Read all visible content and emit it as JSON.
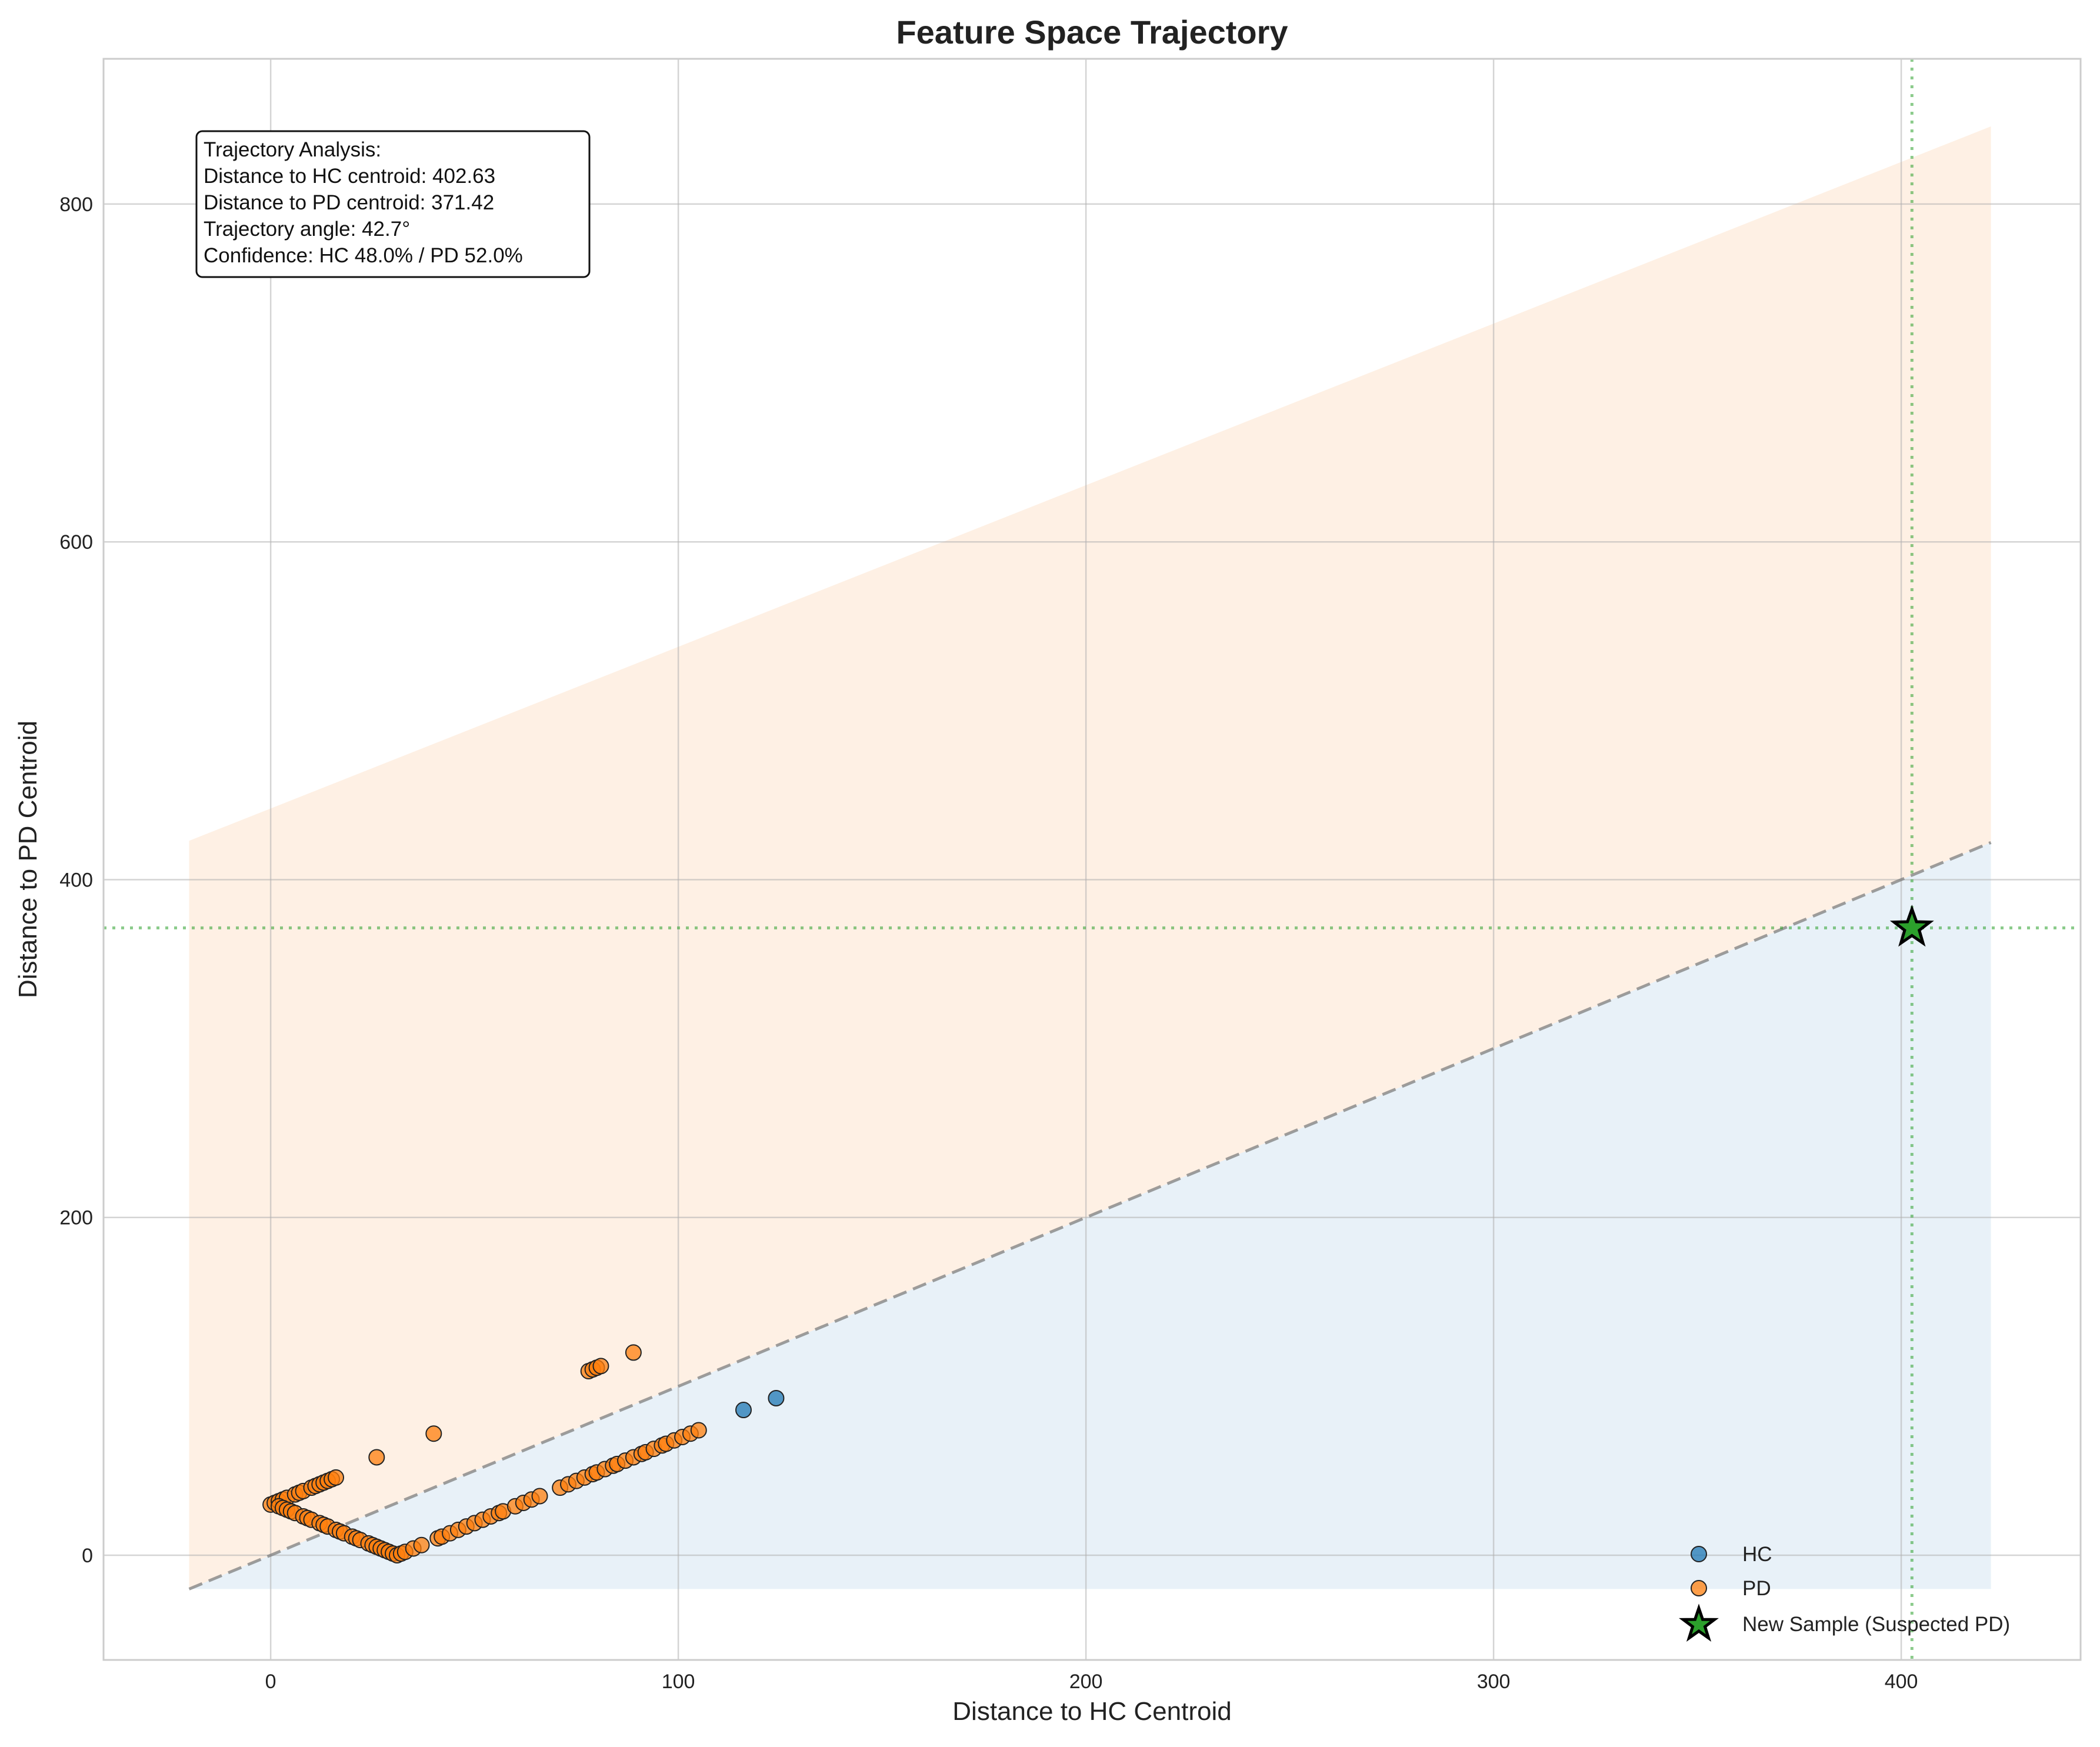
{
  "chart_data": {
    "type": "scatter",
    "title": "Feature Space Trajectory",
    "xlabel": "Distance to HC Centroid",
    "ylabel": "Distance to PD Centroid",
    "xlim": [
      -41,
      444
    ],
    "ylim": [
      -62,
      886
    ],
    "xticks": [
      0,
      100,
      200,
      300,
      400
    ],
    "yticks": [
      0,
      200,
      400,
      600,
      800
    ],
    "grid": true,
    "legend_position": "lower-right",
    "colors": {
      "hc": "#1f77b4",
      "pd": "#ff7f0e",
      "sample": "#2ca02c",
      "diagonal": "#7f7f7f",
      "hc_region": "#dce9f5",
      "pd_region": "#fde6d2"
    },
    "regions": [
      {
        "name": "PD region",
        "x": [
          -20,
          422
        ],
        "lower": [
          -20,
          422
        ],
        "upper": [
          423,
          846
        ]
      },
      {
        "name": "HC region",
        "x": [
          -20,
          422
        ],
        "lower": [
          -20,
          -20
        ],
        "upper": [
          -20,
          422
        ]
      }
    ],
    "diagonal": {
      "x": [
        -20,
        422
      ],
      "y": [
        -20,
        422
      ]
    },
    "series": [
      {
        "name": "HC",
        "points": [
          [
            116,
            86
          ],
          [
            124,
            93
          ]
        ]
      },
      {
        "name": "PD",
        "points": [
          [
            0,
            30
          ],
          [
            1,
            31
          ],
          [
            2,
            32
          ],
          [
            3,
            33
          ],
          [
            4,
            34
          ],
          [
            6,
            36
          ],
          [
            7,
            37
          ],
          [
            8,
            38
          ],
          [
            10,
            40
          ],
          [
            11,
            41
          ],
          [
            12,
            42
          ],
          [
            13,
            43
          ],
          [
            14,
            44
          ],
          [
            15,
            45
          ],
          [
            16,
            46
          ],
          [
            2,
            29
          ],
          [
            3,
            28
          ],
          [
            4,
            27
          ],
          [
            5,
            26
          ],
          [
            6,
            25
          ],
          [
            8,
            23
          ],
          [
            9,
            22
          ],
          [
            10,
            21
          ],
          [
            12,
            19
          ],
          [
            13,
            18
          ],
          [
            14,
            17
          ],
          [
            16,
            15
          ],
          [
            17,
            14
          ],
          [
            18,
            13
          ],
          [
            20,
            11
          ],
          [
            21,
            10
          ],
          [
            22,
            9
          ],
          [
            24,
            7
          ],
          [
            25,
            6
          ],
          [
            26,
            5
          ],
          [
            27,
            4
          ],
          [
            28,
            3
          ],
          [
            29,
            2
          ],
          [
            30,
            1
          ],
          [
            31,
            0
          ],
          [
            32,
            1
          ],
          [
            33,
            2
          ],
          [
            35,
            4
          ],
          [
            37,
            6
          ],
          [
            41,
            10
          ],
          [
            42,
            11
          ],
          [
            44,
            13
          ],
          [
            46,
            15
          ],
          [
            48,
            17
          ],
          [
            50,
            19
          ],
          [
            52,
            21
          ],
          [
            54,
            23
          ],
          [
            56,
            25
          ],
          [
            57,
            26
          ],
          [
            60,
            29
          ],
          [
            62,
            31
          ],
          [
            64,
            33
          ],
          [
            66,
            35
          ],
          [
            71,
            40
          ],
          [
            73,
            42
          ],
          [
            75,
            44
          ],
          [
            77,
            46
          ],
          [
            79,
            48
          ],
          [
            80,
            49
          ],
          [
            82,
            51
          ],
          [
            84,
            53
          ],
          [
            85,
            54
          ],
          [
            87,
            56
          ],
          [
            89,
            58
          ],
          [
            91,
            60
          ],
          [
            92,
            61
          ],
          [
            94,
            63
          ],
          [
            96,
            65
          ],
          [
            97,
            66
          ],
          [
            99,
            68
          ],
          [
            101,
            70
          ],
          [
            103,
            72
          ],
          [
            105,
            74
          ],
          [
            26,
            58
          ],
          [
            40,
            72
          ],
          [
            78,
            109
          ],
          [
            79,
            110
          ],
          [
            80,
            111
          ],
          [
            81,
            112
          ],
          [
            89,
            120
          ]
        ]
      },
      {
        "name": "New Sample (Suspected PD)",
        "points": [
          [
            402.63,
            371.42
          ]
        ]
      }
    ],
    "annotation": {
      "lines": [
        "Trajectory Analysis:",
        "Distance to HC centroid: 402.63",
        "Distance to PD centroid: 371.42",
        "Trajectory angle: 42.7°",
        "Confidence: HC 48.0% / PD 52.0%"
      ]
    }
  }
}
